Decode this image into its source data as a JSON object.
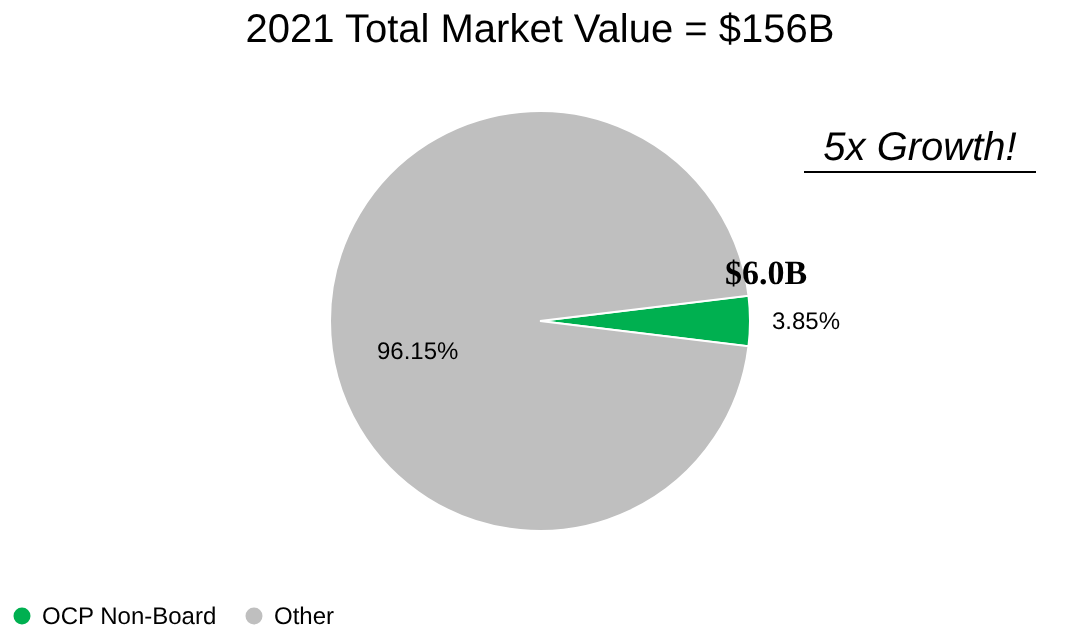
{
  "chart_data": {
    "type": "pie",
    "title": "2021 Total Market Value = $156B",
    "categories": [
      "OCP Non-Board",
      "Other"
    ],
    "values": [
      3.85,
      96.15
    ],
    "colors": [
      "#00b050",
      "#bfbfbf"
    ],
    "value_labels": [
      "3.85%",
      "96.15%"
    ],
    "annotations": [
      "5x Growth!",
      "$6.0B"
    ],
    "legend": "bottom"
  }
}
